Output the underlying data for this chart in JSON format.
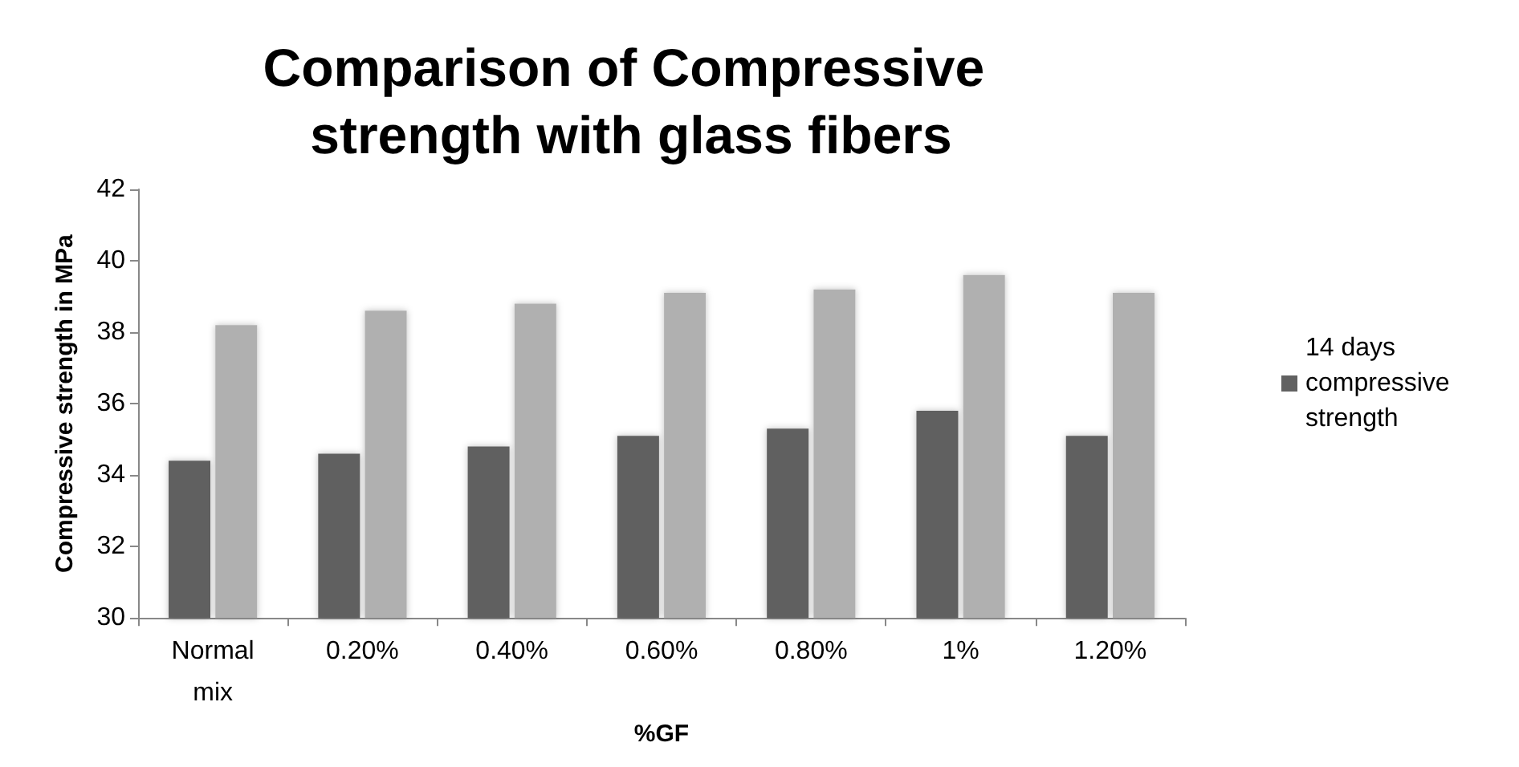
{
  "chart_data": {
    "type": "bar",
    "title": "Comparison of Compressive strength with glass fibers",
    "xlabel": "%GF",
    "ylabel": "Compressive strength in MPa",
    "categories": [
      "Normal mix",
      "0.20%",
      "0.40%",
      "0.60%",
      "0.80%",
      "1%",
      "1.20%"
    ],
    "series": [
      {
        "name": "14 days compressive strength",
        "color": "#616161",
        "values": [
          34.4,
          34.6,
          34.8,
          35.1,
          35.3,
          35.8,
          35.1
        ]
      },
      {
        "color": "#b0b0b0",
        "values": [
          38.2,
          38.6,
          38.8,
          39.1,
          39.2,
          39.6,
          39.1
        ]
      }
    ],
    "ylim": [
      30,
      42
    ],
    "yticks": [
      30,
      32,
      34,
      36,
      38,
      40,
      42
    ],
    "grid": false,
    "legend": "right"
  }
}
